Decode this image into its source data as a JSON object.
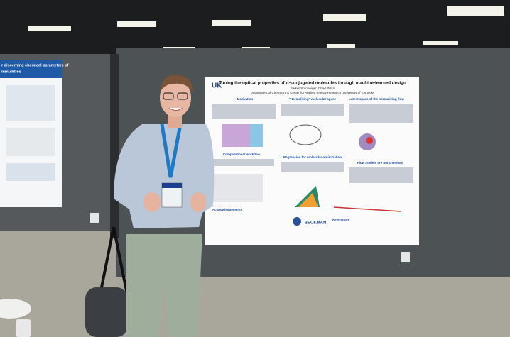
{
  "poster": {
    "logo": "UK",
    "title": "Tuning the optical properties of π-conjugated molecules through machine-learned design",
    "authors": "Parker Sornberger, Chad Risko",
    "affiliation": "Department of Chemistry & Center for Applied Energy Research, University of Kentucky",
    "sections": [
      "Motivation",
      "\"Normalizing\" molecular space",
      "Latent space of the normalizing flow",
      "Computational workflow",
      "Regression for molecular optimization",
      "Flow models are not chemists",
      "Acknowledgements",
      "References"
    ],
    "sponsor": "BECKMAN"
  },
  "left_poster": {
    "title_line_1": "r discerning chemical parameters of",
    "title_line_2": "mmunities"
  }
}
